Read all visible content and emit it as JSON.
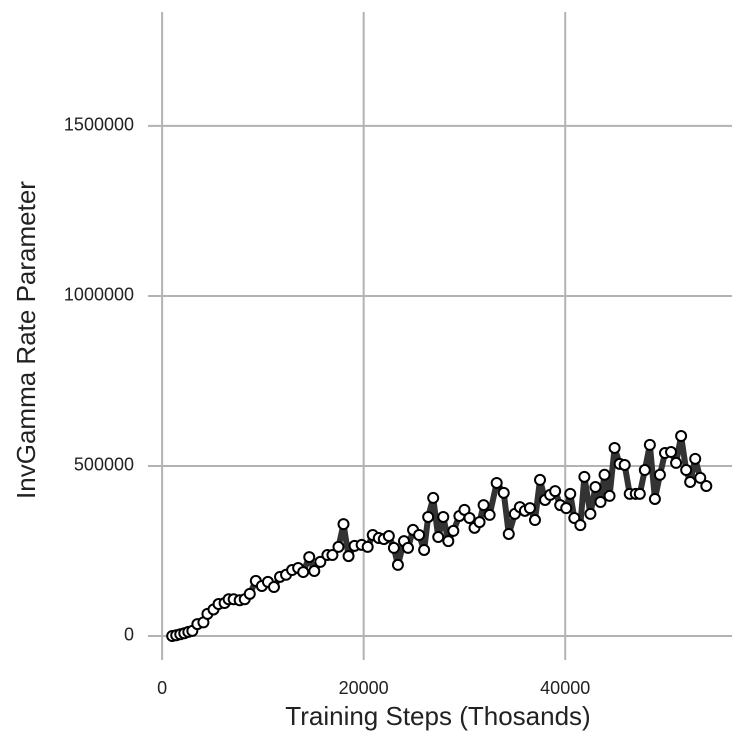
{
  "chart_data": {
    "type": "line",
    "xlabel": "Training Steps (Thosands)",
    "ylabel": "InvGamma Rate Parameter",
    "x": [
      1000,
      1400,
      1800,
      2200,
      2600,
      3000,
      3500,
      4100,
      4500,
      5100,
      5600,
      6200,
      6600,
      7100,
      7700,
      8200,
      8700,
      9300,
      9900,
      10500,
      11100,
      11700,
      12300,
      12900,
      13500,
      14000,
      14600,
      15100,
      15700,
      16400,
      16900,
      17500,
      18000,
      18500,
      19100,
      19800,
      20400,
      20900,
      21500,
      22000,
      22500,
      23000,
      23400,
      24000,
      24400,
      24900,
      25500,
      26000,
      26400,
      26900,
      27400,
      27900,
      28400,
      28900,
      29500,
      30000,
      30500,
      31000,
      31500,
      31900,
      32500,
      33200,
      33900,
      34400,
      35000,
      35500,
      36000,
      36500,
      37000,
      37500,
      38000,
      38500,
      39000,
      39500,
      40100,
      40500,
      40900,
      41500,
      41900,
      42500,
      43000,
      43500,
      43900,
      44400,
      44900,
      45400,
      45900,
      46400,
      47000,
      47400,
      47900,
      48400,
      48900,
      49400,
      49900,
      50500,
      51000,
      51500,
      52000,
      52400,
      52900,
      53400,
      54000
    ],
    "values": [
      0,
      2000,
      5000,
      8000,
      12000,
      15000,
      35000,
      40000,
      65000,
      78000,
      94000,
      97000,
      108000,
      108000,
      105000,
      108000,
      124000,
      162000,
      147000,
      159000,
      144000,
      174000,
      180000,
      194000,
      200000,
      188000,
      232000,
      191000,
      218000,
      238000,
      238000,
      262000,
      329000,
      235000,
      265000,
      268000,
      262000,
      297000,
      288000,
      285000,
      294000,
      259000,
      209000,
      279000,
      259000,
      312000,
      297000,
      253000,
      350000,
      406000,
      291000,
      350000,
      279000,
      309000,
      353000,
      371000,
      347000,
      318000,
      335000,
      385000,
      356000,
      450000,
      421000,
      300000,
      359000,
      379000,
      368000,
      376000,
      341000,
      459000,
      400000,
      415000,
      426000,
      385000,
      376000,
      418000,
      347000,
      326000,
      468000,
      359000,
      438000,
      394000,
      474000,
      412000,
      553000,
      506000,
      503000,
      418000,
      418000,
      418000,
      488000,
      562000,
      403000,
      474000,
      538000,
      541000,
      509000,
      588000,
      488000,
      453000,
      521000,
      465000,
      441000
    ],
    "color": "#333333",
    "marker_fill": "#ffffff",
    "xlim": [
      -1400,
      56550
    ],
    "ylim": [
      -70600,
      1835000
    ],
    "xticks": [
      0,
      20000,
      40000
    ],
    "yticks": [
      0,
      500000,
      1000000,
      1500000
    ],
    "grid": true
  }
}
